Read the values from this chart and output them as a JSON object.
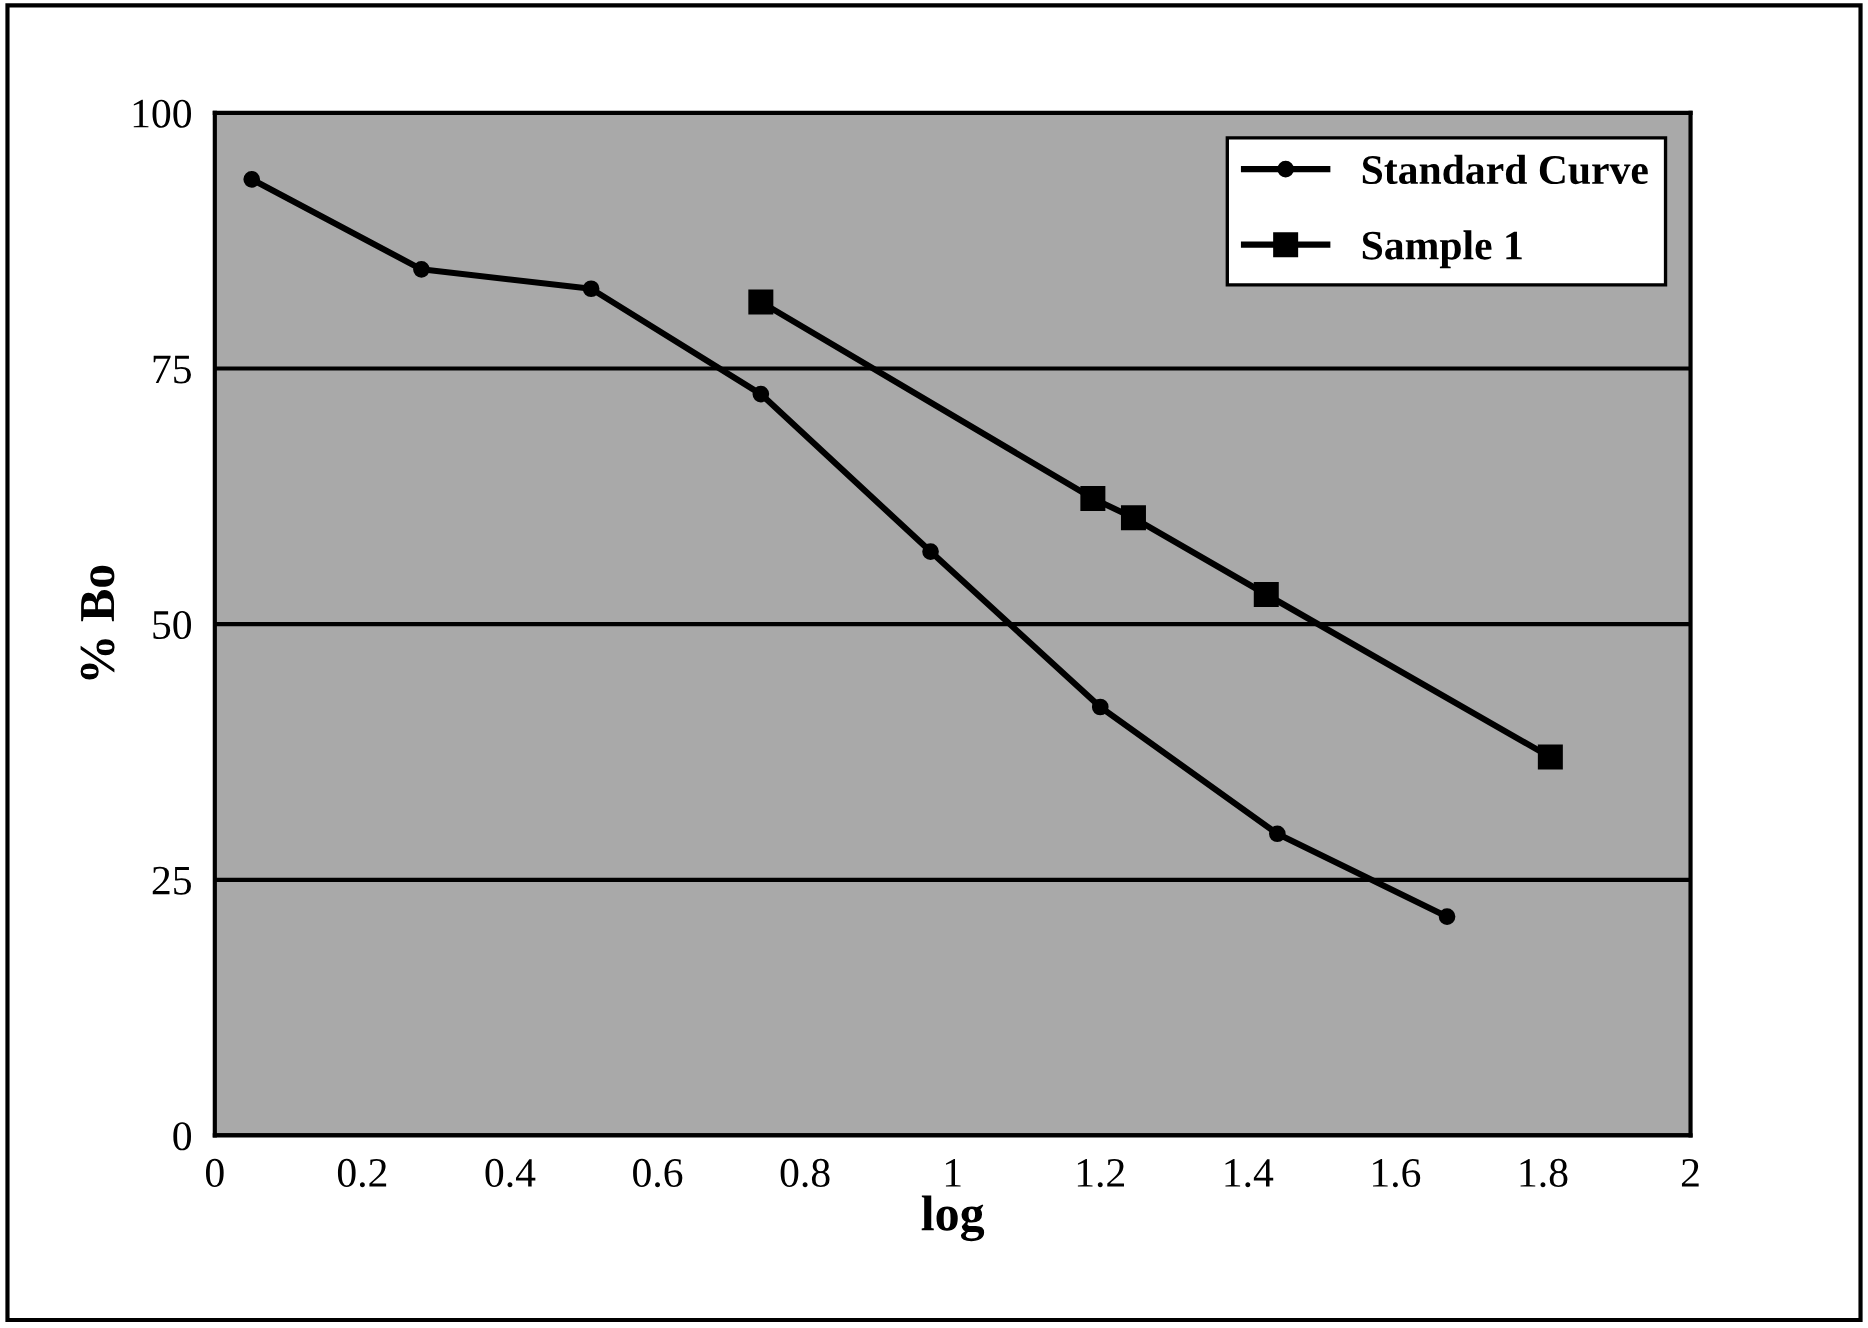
{
  "chart_data": {
    "type": "line",
    "xlabel": "log",
    "ylabel": "% Bo",
    "xlim": [
      0,
      2
    ],
    "ylim": [
      0,
      100
    ],
    "xticks": [
      0,
      0.2,
      0.4,
      0.6,
      0.8,
      1,
      1.2,
      1.4,
      1.6,
      1.8,
      2
    ],
    "yticks": [
      0,
      25,
      50,
      75,
      100
    ],
    "grid": "y",
    "legend": "top right",
    "series": [
      {
        "name": "Standard Curve",
        "color": "#000000",
        "marker": "circle",
        "x": [
          0.05,
          0.28,
          0.51,
          0.74,
          0.97,
          1.2,
          1.44,
          1.67
        ],
        "values": [
          93.5,
          84.7,
          82.8,
          72.5,
          57.1,
          41.9,
          29.5,
          21.4
        ]
      },
      {
        "name": "Sample 1",
        "color": "#000000",
        "marker": "square",
        "x": [
          0.74,
          1.19,
          1.245,
          1.425,
          1.81
        ],
        "values": [
          81.5,
          62.3,
          60.4,
          52.9,
          37.0
        ]
      }
    ]
  }
}
